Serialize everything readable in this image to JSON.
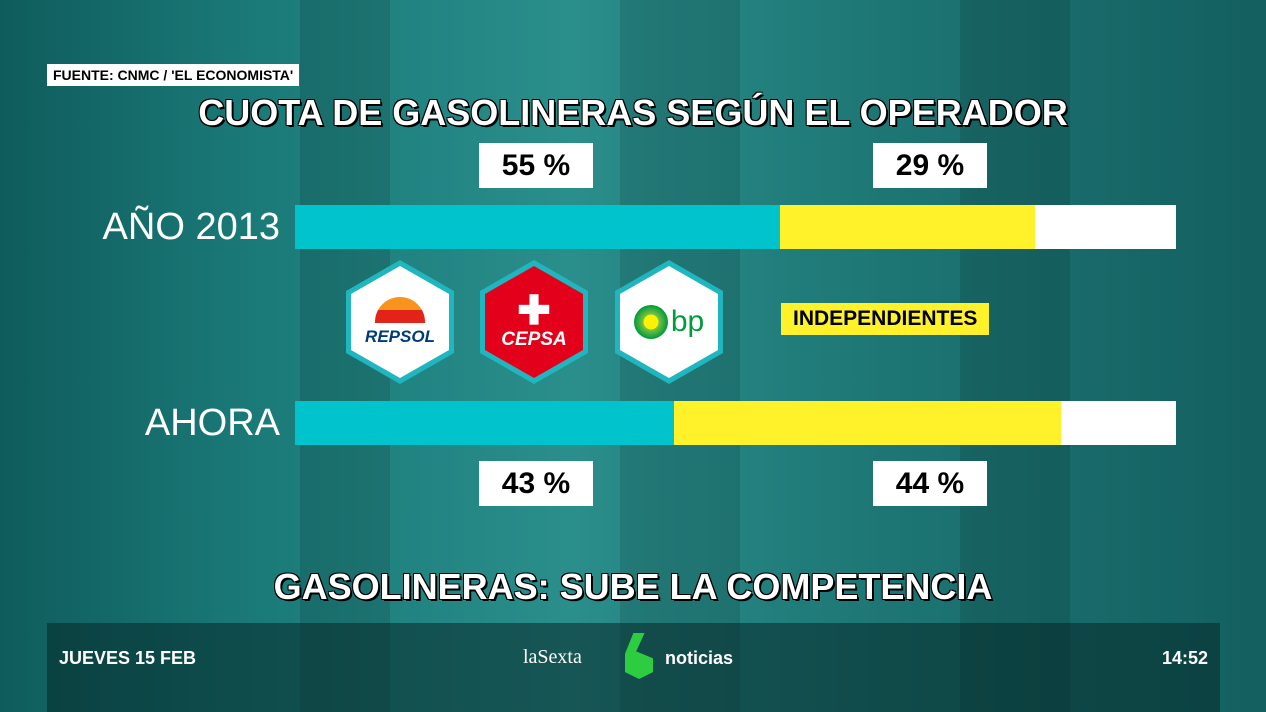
{
  "source": "FUENTE: CNMC / 'EL ECONOMISTA'",
  "chart_data": {
    "type": "bar",
    "stacked": true,
    "orientation": "horizontal",
    "title": "CUOTA DE GASOLINERAS SEGÚN EL OPERADOR",
    "categories": [
      "AÑO 2013",
      "AHORA"
    ],
    "series": [
      {
        "name": "REPSOL / CEPSA / BP",
        "values": [
          55,
          43
        ],
        "labels": [
          "55 %",
          "43 %"
        ],
        "color": "#00c3cc"
      },
      {
        "name": "INDEPENDIENTES",
        "values": [
          29,
          44
        ],
        "labels": [
          "29 %",
          "44 %"
        ],
        "color": "#fff22a"
      },
      {
        "values": [
          16,
          13
        ],
        "color": "#ffffff"
      }
    ],
    "xlim": [
      0,
      100
    ]
  },
  "legend": {
    "brands": [
      "REPSOL",
      "CEPSA",
      "bp"
    ],
    "independent_label": "INDEPENDIENTES"
  },
  "subtitle": "GASOLINERAS: SUBE LA COMPETENCIA",
  "footer": {
    "date": "JUEVES 15 FEB",
    "channel": "laSexta",
    "program": "noticias",
    "time": "14:52"
  }
}
